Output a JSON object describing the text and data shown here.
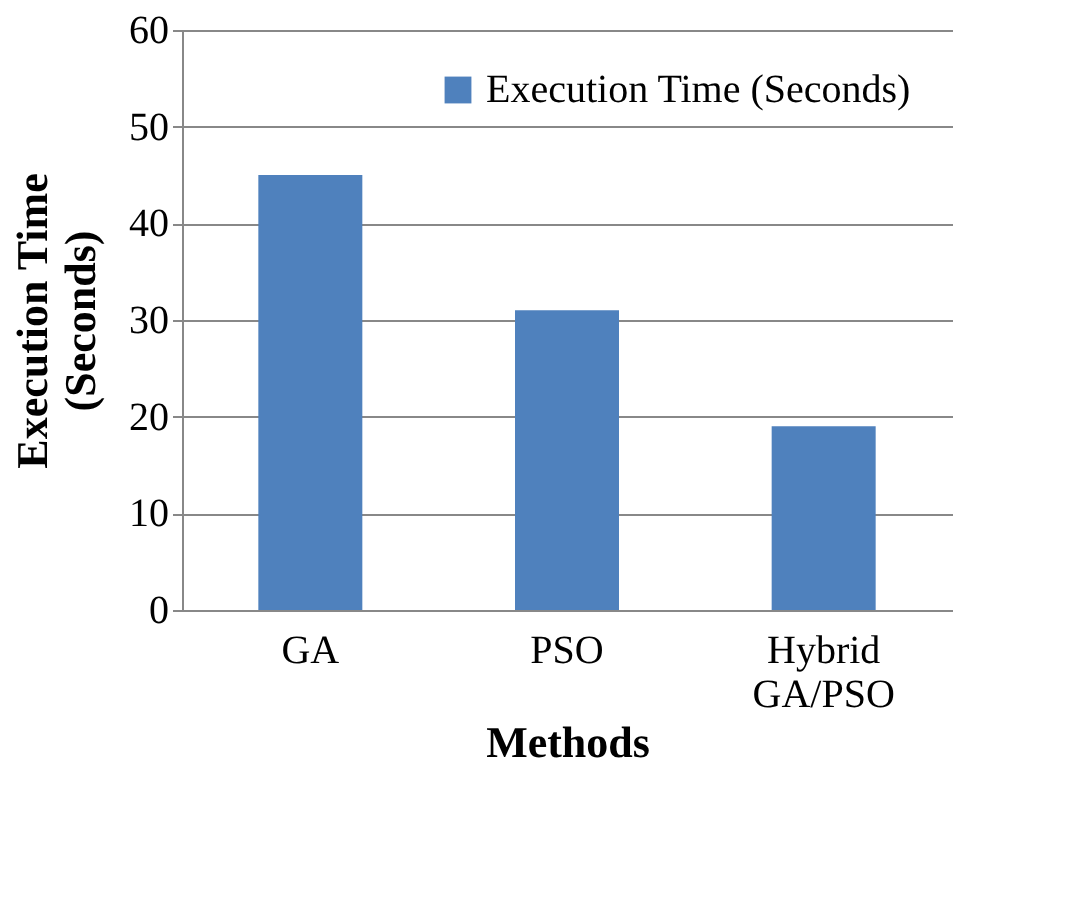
{
  "chart_data": {
    "type": "bar",
    "xlabel": "Methods",
    "ylabel": "Execution Time (Seconds)",
    "categories": [
      "GA",
      "PSO",
      "Hybrid GA/PSO"
    ],
    "series": [
      {
        "name": "Execution Time (Seconds)",
        "color": "#4f81bd",
        "values": [
          45,
          31,
          19
        ]
      }
    ],
    "ylim": [
      0,
      60
    ],
    "yticks": [
      0,
      10,
      20,
      30,
      40,
      50,
      60
    ],
    "grid": "y",
    "legend": "top right"
  }
}
